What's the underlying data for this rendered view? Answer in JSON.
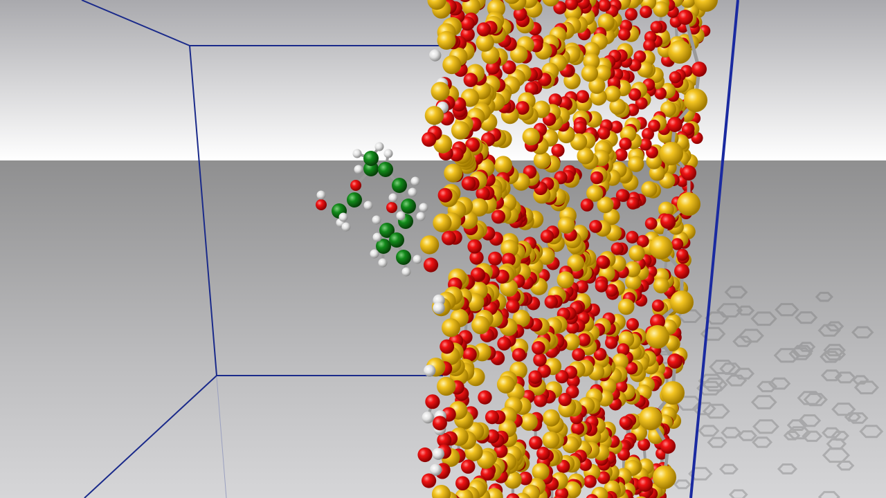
{
  "scene": {
    "description_visible_text": "",
    "colors": {
      "sky_top": "#a9a9ad",
      "sky_bottom": "#ffffff",
      "floor_top": "#8f8f90",
      "floor_bottom": "#d6d6d8",
      "box_edge": "#1a2a8a",
      "oxygen": "#e00000",
      "silicon": "#f2c21d",
      "carbon": "#128a1a",
      "hydrogen": "#e6e6e6",
      "bond": "#9a9a9a",
      "shadow": "#8a8a8a"
    },
    "elements": [
      "oxygen-atom",
      "silicon-atom",
      "carbon-atom",
      "hydrogen-atom",
      "bond",
      "simulation-box"
    ]
  }
}
